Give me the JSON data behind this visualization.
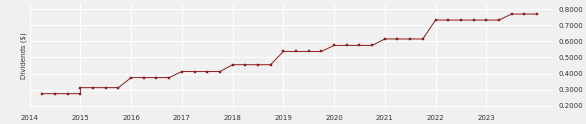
{
  "title": "",
  "ylabel": "Dividends ($)",
  "line_color": "#8B1A1A",
  "marker_color": "#8B1A1A",
  "bg_color": "#f0f0f0",
  "grid_color": "#ffffff",
  "xlim": [
    2014.0,
    2024.3
  ],
  "ylim": [
    0.18,
    0.84
  ],
  "yticks": [
    0.2,
    0.3,
    0.4,
    0.5,
    0.6,
    0.7,
    0.8
  ],
  "xticks": [
    2014,
    2015,
    2016,
    2017,
    2018,
    2019,
    2020,
    2021,
    2022,
    2023
  ],
  "data": [
    [
      2014.25,
      0.275
    ],
    [
      2014.5,
      0.275
    ],
    [
      2014.75,
      0.275
    ],
    [
      2015.0,
      0.275
    ],
    [
      2015.0,
      0.3125
    ],
    [
      2015.25,
      0.3125
    ],
    [
      2015.5,
      0.3125
    ],
    [
      2015.75,
      0.3125
    ],
    [
      2016.0,
      0.375
    ],
    [
      2016.25,
      0.375
    ],
    [
      2016.5,
      0.375
    ],
    [
      2016.75,
      0.375
    ],
    [
      2017.0,
      0.4125
    ],
    [
      2017.25,
      0.4125
    ],
    [
      2017.5,
      0.4125
    ],
    [
      2017.75,
      0.4125
    ],
    [
      2018.0,
      0.455
    ],
    [
      2018.25,
      0.455
    ],
    [
      2018.5,
      0.455
    ],
    [
      2018.75,
      0.455
    ],
    [
      2019.0,
      0.5375
    ],
    [
      2019.25,
      0.5375
    ],
    [
      2019.5,
      0.5375
    ],
    [
      2019.75,
      0.5375
    ],
    [
      2020.0,
      0.575
    ],
    [
      2020.25,
      0.575
    ],
    [
      2020.5,
      0.575
    ],
    [
      2020.75,
      0.575
    ],
    [
      2021.0,
      0.615
    ],
    [
      2021.25,
      0.615
    ],
    [
      2021.5,
      0.615
    ],
    [
      2021.75,
      0.615
    ],
    [
      2022.0,
      0.7325
    ],
    [
      2022.25,
      0.7325
    ],
    [
      2022.5,
      0.7325
    ],
    [
      2022.75,
      0.7325
    ],
    [
      2023.0,
      0.7325
    ],
    [
      2023.25,
      0.7325
    ],
    [
      2023.5,
      0.77
    ],
    [
      2023.75,
      0.77
    ],
    [
      2024.0,
      0.77
    ]
  ]
}
